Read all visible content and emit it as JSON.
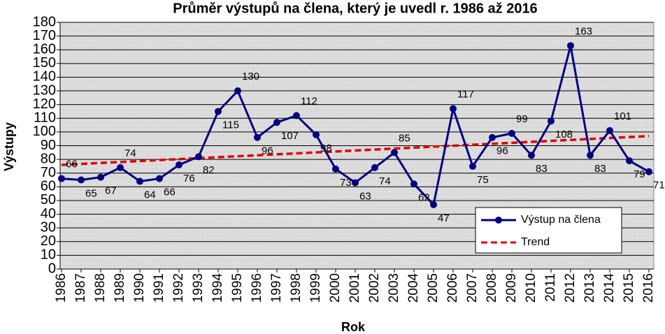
{
  "chart_data": {
    "type": "line",
    "title": "Průměr výstupů  na člena, který je uvedl r. 1986 až 2016",
    "x_label": "Rok",
    "y_label": "Výstupy",
    "categories": [
      "1986",
      "1987",
      "1988",
      "1989",
      "1990",
      "1991",
      "1992",
      "1993",
      "1994",
      "1995",
      "1996",
      "1997",
      "1998",
      "1999",
      "2000",
      "2001",
      "2002",
      "2003",
      "2004",
      "2005",
      "2006",
      "2007",
      "2008",
      "2009",
      "2010",
      "2011",
      "2012",
      "2013",
      "2014",
      "2015",
      "2016"
    ],
    "series": [
      {
        "name": "Výstup na člena",
        "color": "#000080",
        "data_labels": true,
        "values": [
          66,
          65,
          67,
          74,
          64,
          66,
          76,
          82,
          115,
          130,
          96,
          107,
          112,
          98,
          73,
          63,
          74,
          85,
          62,
          47,
          117,
          75,
          96,
          99,
          83,
          108,
          163,
          83,
          101,
          79,
          71
        ]
      },
      {
        "name": "Trend",
        "color": "#e00000",
        "dashed": true,
        "data_labels": false,
        "values": [
          76,
          76.7,
          77.4,
          78.1,
          78.8,
          79.5,
          80.2,
          80.9,
          81.6,
          82.3,
          83,
          83.7,
          84.4,
          85.1,
          85.8,
          86.5,
          87.2,
          87.9,
          88.6,
          89.3,
          90,
          90.7,
          91.4,
          92.1,
          92.8,
          93.5,
          94.2,
          94.9,
          95.6,
          96.3,
          97
        ]
      }
    ],
    "ylim": [
      0,
      180
    ],
    "yticks": [
      0,
      10,
      20,
      30,
      40,
      50,
      60,
      70,
      80,
      90,
      100,
      110,
      120,
      130,
      140,
      150,
      160,
      170,
      180
    ],
    "grid": true,
    "legend": "lower right"
  }
}
